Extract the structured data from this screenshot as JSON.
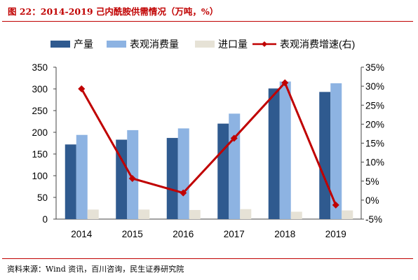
{
  "header": {
    "title": "图 22：2014-2019 己内酰胺供需情况（万吨，%）"
  },
  "footer": {
    "source": "资料来源：Wind 资讯，百川咨询，民生证券研究院"
  },
  "colors": {
    "title_red": "#c00000",
    "production": "#2f5a8f",
    "consumption": "#8db3e2",
    "import": "#e6e2d6",
    "growth": "#c00000"
  },
  "chart_data": {
    "type": "bar",
    "categories": [
      "2014",
      "2015",
      "2016",
      "2017",
      "2018",
      "2019"
    ],
    "series": [
      {
        "name": "产量",
        "type": "bar",
        "axis": "left",
        "values": [
          172,
          183,
          187,
          220,
          301,
          293
        ]
      },
      {
        "name": "表观消费量",
        "type": "bar",
        "axis": "left",
        "values": [
          194,
          205,
          209,
          243,
          317,
          313
        ]
      },
      {
        "name": "进口量",
        "type": "bar",
        "axis": "left",
        "values": [
          22,
          22,
          21,
          23,
          17,
          20
        ]
      },
      {
        "name": "表观消费增速(右)",
        "type": "line",
        "axis": "right",
        "values": [
          29.3,
          5.7,
          1.9,
          16.3,
          30.9,
          -1.3
        ]
      }
    ],
    "y_left": {
      "ylim": [
        0,
        350
      ],
      "ticks": [
        "0",
        "50",
        "100",
        "150",
        "200",
        "250",
        "300",
        "350"
      ]
    },
    "y_right": {
      "ylim": [
        -5,
        35
      ],
      "ticks": [
        "-5%",
        "0%",
        "5%",
        "10%",
        "15%",
        "20%",
        "25%",
        "30%",
        "35%"
      ]
    },
    "legend": "top",
    "grid": false
  }
}
